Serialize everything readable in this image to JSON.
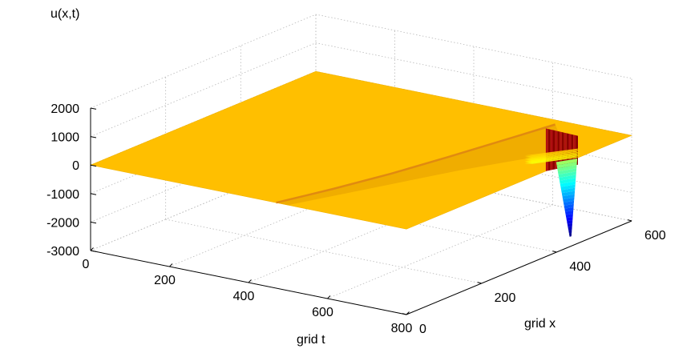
{
  "chart_data": {
    "type": "surface",
    "title": "",
    "zlabel": "u(x,t)",
    "xlabel": "grid  x",
    "tlabel": "grid  t",
    "x_ticks": [
      "0",
      "200",
      "400",
      "600"
    ],
    "t_ticks": [
      "0",
      "200",
      "400",
      "600",
      "800"
    ],
    "z_ticks": [
      "2000",
      "1000",
      "0",
      "-1000",
      "-2000",
      "-3000"
    ],
    "x_range": [
      0,
      600
    ],
    "t_range": [
      0,
      800
    ],
    "z_range": [
      -3000,
      2000
    ],
    "grid": true,
    "colormap": "jet",
    "surface_base_color": "#ffbf00",
    "surface": {
      "plateau_value": 0,
      "ridge": [
        {
          "x": 0,
          "t": 470,
          "u": 0
        },
        {
          "x": 100,
          "t": 520,
          "u": 80
        },
        {
          "x": 200,
          "t": 570,
          "u": 200
        },
        {
          "x": 300,
          "t": 620,
          "u": 380
        },
        {
          "x": 400,
          "t": 680,
          "u": 650
        },
        {
          "x": 470,
          "t": 730,
          "u": 900
        }
      ],
      "spike": {
        "x": 480,
        "t": 760,
        "u": -3000
      }
    }
  }
}
